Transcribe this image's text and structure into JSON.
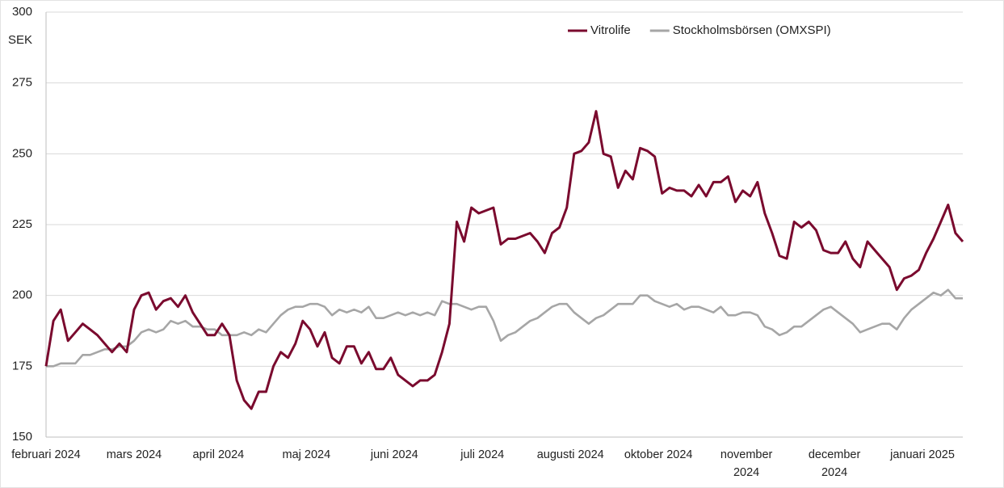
{
  "chart_data": {
    "type": "line",
    "y_unit_label": "SEK",
    "x": [
      0,
      2,
      4,
      6,
      8,
      10,
      12,
      14,
      16,
      18,
      20,
      22,
      24,
      26,
      28,
      30,
      32,
      34,
      36,
      38,
      40,
      42,
      44,
      46,
      48,
      50,
      52,
      54,
      56,
      58,
      60,
      62,
      64,
      66,
      68,
      70,
      72,
      74,
      76,
      78,
      80,
      82,
      84,
      86,
      88,
      90,
      92,
      94,
      96,
      98,
      100,
      102,
      104,
      106,
      108,
      110,
      112,
      114,
      116,
      118,
      120,
      122,
      124,
      126,
      128,
      130,
      132,
      134,
      136,
      138,
      140,
      142,
      144,
      146,
      148,
      150,
      152,
      154,
      156,
      158,
      160,
      162,
      164,
      166,
      168,
      170,
      172,
      174,
      176,
      178,
      180,
      182,
      184,
      186,
      188,
      190,
      192,
      194,
      196,
      198,
      200,
      202,
      204,
      206,
      208,
      210,
      212,
      214,
      216,
      218,
      220,
      222,
      224,
      226,
      228,
      230,
      232,
      234,
      236,
      238,
      240,
      242,
      244,
      246,
      248,
      250
    ],
    "series": [
      {
        "name": "Vitrolife",
        "color": "#7a0a2e",
        "values": [
          175,
          191,
          195,
          184,
          187,
          190,
          188,
          186,
          183,
          180,
          183,
          180,
          195,
          200,
          201,
          195,
          198,
          199,
          196,
          200,
          194,
          190,
          186,
          186,
          190,
          186,
          170,
          163,
          160,
          166,
          166,
          175,
          180,
          178,
          183,
          191,
          188,
          182,
          187,
          178,
          176,
          182,
          182,
          176,
          180,
          174,
          174,
          178,
          172,
          170,
          168,
          170,
          170,
          172,
          180,
          190,
          226,
          219,
          231,
          229,
          230,
          231,
          218,
          220,
          220,
          221,
          222,
          219,
          215,
          222,
          224,
          231,
          250,
          251,
          254,
          265,
          250,
          249,
          238,
          244,
          241,
          252,
          251,
          249,
          236,
          238,
          237,
          237,
          235,
          239,
          235,
          240,
          240,
          242,
          233,
          237,
          235,
          240,
          229,
          222,
          214,
          213,
          226,
          224,
          226,
          223,
          216,
          215,
          215,
          219,
          213,
          210,
          219,
          216,
          213,
          210,
          202,
          206,
          207,
          209,
          215,
          220,
          226,
          232,
          222,
          219
        ]
      },
      {
        "name": "Stockholmsbörsen (OMXSPI)",
        "color": "#a6a6a6",
        "values": [
          175,
          175,
          176,
          176,
          176,
          179,
          179,
          180,
          181,
          181,
          182,
          182,
          184,
          187,
          188,
          187,
          188,
          191,
          190,
          191,
          189,
          189,
          188,
          188,
          186,
          186,
          186,
          187,
          186,
          188,
          187,
          190,
          193,
          195,
          196,
          196,
          197,
          197,
          196,
          193,
          195,
          194,
          195,
          194,
          196,
          192,
          192,
          193,
          194,
          193,
          194,
          193,
          194,
          193,
          198,
          197,
          197,
          196,
          195,
          196,
          196,
          191,
          184,
          186,
          187,
          189,
          191,
          192,
          194,
          196,
          197,
          197,
          194,
          192,
          190,
          192,
          193,
          195,
          197,
          197,
          197,
          200,
          200,
          198,
          197,
          196,
          197,
          195,
          196,
          196,
          195,
          194,
          196,
          193,
          193,
          194,
          194,
          193,
          189,
          188,
          186,
          187,
          189,
          189,
          191,
          193,
          195,
          196,
          194,
          192,
          190,
          187,
          188,
          189,
          190,
          190,
          188,
          192,
          195,
          197,
          199,
          201,
          200,
          202,
          199,
          199
        ]
      }
    ],
    "xlim": [
      0,
      250
    ],
    "xticks": [
      {
        "value": 0,
        "label": "februari 2024"
      },
      {
        "value": 24,
        "label": "mars 2024"
      },
      {
        "value": 47,
        "label": "april 2024"
      },
      {
        "value": 71,
        "label": "maj 2024"
      },
      {
        "value": 95,
        "label": "juni 2024"
      },
      {
        "value": 119,
        "label": "juli 2024"
      },
      {
        "value": 143,
        "label": "augusti 2024"
      },
      {
        "value": 167,
        "label": "oktober 2024"
      },
      {
        "value": 191,
        "label": "november 2024"
      },
      {
        "value": 215,
        "label": "december 2024"
      },
      {
        "value": 239,
        "label": "januari 2025"
      }
    ],
    "ylim": [
      150,
      300
    ],
    "yticks": [
      150,
      175,
      200,
      225,
      250,
      275,
      300
    ],
    "grid": true,
    "legend": "top-right"
  }
}
